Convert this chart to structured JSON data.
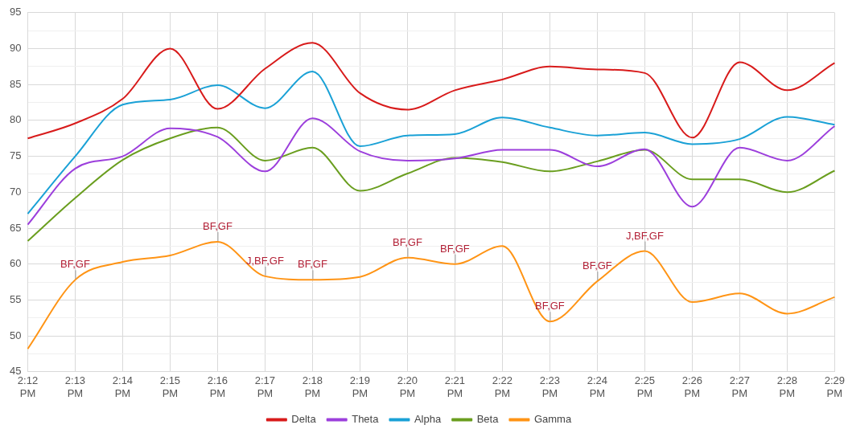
{
  "chart_data": {
    "type": "line",
    "categories": [
      "2:12 PM",
      "2:13 PM",
      "2:14 PM",
      "2:15 PM",
      "2:16 PM",
      "2:17 PM",
      "2:18 PM",
      "2:19 PM",
      "2:20 PM",
      "2:21 PM",
      "2:22 PM",
      "2:23 PM",
      "2:24 PM",
      "2:25 PM",
      "2:26 PM",
      "2:27 PM",
      "2:28 PM",
      "2:29 PM"
    ],
    "series": [
      {
        "name": "Delta",
        "color": "#d81b1b",
        "values": [
          77.5,
          79.6,
          83,
          90,
          81.6,
          87.2,
          90.8,
          83.8,
          81.5,
          84.2,
          85.7,
          87.5,
          87.1,
          86.6,
          77.6,
          88.1,
          84.2,
          88
        ]
      },
      {
        "name": "Theta",
        "color": "#9c3fdc",
        "values": [
          65.5,
          73.3,
          75,
          78.9,
          77.7,
          72.9,
          80.3,
          75.7,
          74.4,
          74.7,
          75.9,
          75.9,
          73.6,
          76,
          68,
          76.2,
          74.4,
          79.2
        ]
      },
      {
        "name": "Alpha",
        "color": "#1aa1d6",
        "values": [
          67,
          75,
          82.2,
          82.9,
          84.9,
          81.7,
          86.8,
          76.4,
          77.9,
          78.1,
          80.4,
          79,
          77.9,
          78.3,
          76.7,
          77.4,
          80.5,
          79.4
        ]
      },
      {
        "name": "Beta",
        "color": "#6a9e1f",
        "values": [
          63.2,
          69.2,
          74.5,
          77.5,
          79,
          74.4,
          76.2,
          70.2,
          72.6,
          74.8,
          74.2,
          72.9,
          74.3,
          75.9,
          71.8,
          71.8,
          70,
          73
        ]
      },
      {
        "name": "Gamma",
        "color": "#ff9415",
        "values": [
          48.2,
          57.8,
          60.3,
          61.2,
          63.1,
          58.3,
          57.8,
          58.2,
          60.9,
          60,
          62.5,
          52,
          57.6,
          61.8,
          54.7,
          55.9,
          53.1,
          55.4
        ]
      }
    ],
    "ylim": [
      45,
      95
    ],
    "yticks": [
      45,
      {
        "value": 47.5,
        "label": null
      },
      50,
      {
        "value": 52.5,
        "label": null
      },
      55,
      {
        "value": 57.5,
        "label": null
      },
      60,
      {
        "value": 62.5,
        "label": null
      },
      65,
      {
        "value": 67.5,
        "label": null
      },
      70,
      {
        "value": 72.5,
        "label": null
      },
      75,
      {
        "value": 77.5,
        "label": null
      },
      80,
      {
        "value": 82.5,
        "label": null
      },
      85,
      {
        "value": 87.5,
        "label": null
      },
      90,
      {
        "value": 92.5,
        "label": null
      },
      95
    ],
    "grid": true,
    "legend": "bottom",
    "marker": "none",
    "line_style": "solid",
    "annotations": [
      {
        "text": "BF,GF",
        "x": "2:13 PM",
        "y": 57.8
      },
      {
        "text": "BF,GF",
        "x": "2:16 PM",
        "y": 63.1
      },
      {
        "text": "J,BF,GF",
        "x": "2:17 PM",
        "y": 58.3
      },
      {
        "text": "BF,GF",
        "x": "2:18 PM",
        "y": 57.8
      },
      {
        "text": "BF,GF",
        "x": "2:20 PM",
        "y": 60.9
      },
      {
        "text": "BF,GF",
        "x": "2:21 PM",
        "y": 60
      },
      {
        "text": "BF,GF",
        "x": "2:23 PM",
        "y": 52
      },
      {
        "text": "BF,GF",
        "x": "2:24 PM",
        "y": 57.6
      },
      {
        "text": "J,BF,GF",
        "x": "2:25 PM",
        "y": 61.8
      }
    ]
  }
}
